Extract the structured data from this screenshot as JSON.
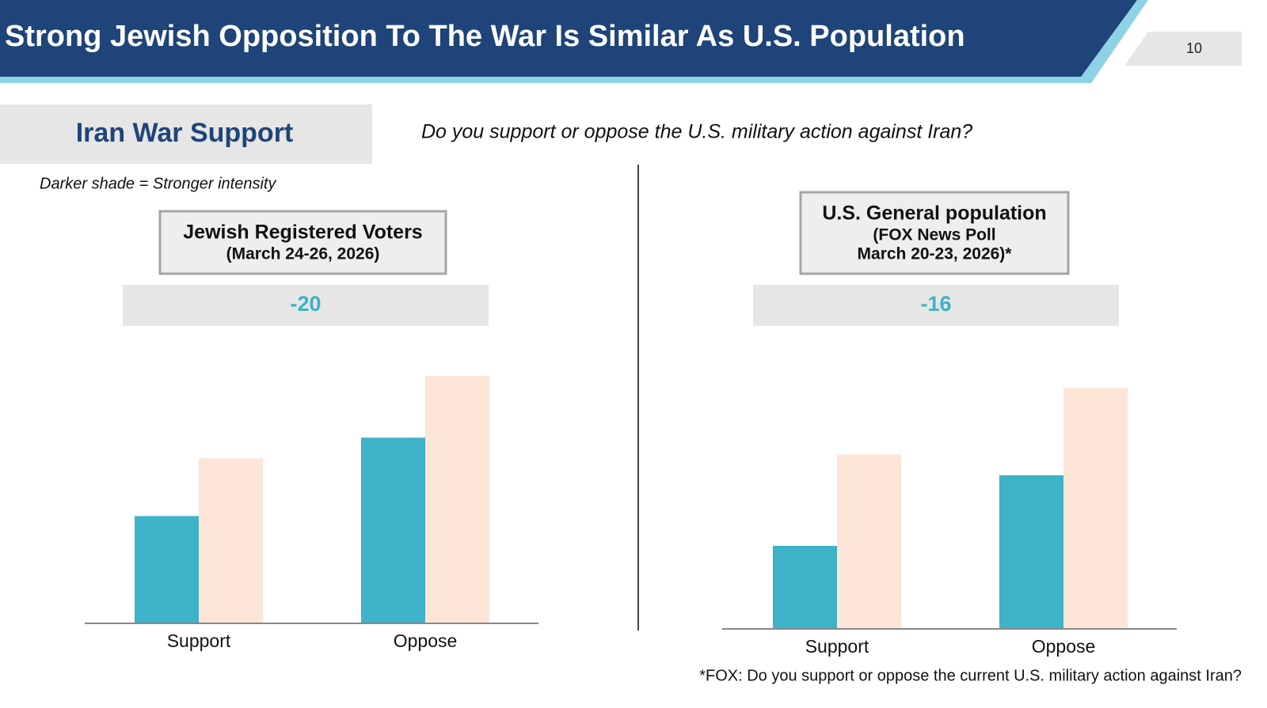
{
  "header": {
    "title": "Strong Jewish Opposition To The War Is Similar As U.S. Population",
    "page_number": 10
  },
  "section_label": "Iran War Support",
  "question": "Do you support or oppose the U.S. military action against Iran?",
  "note": "Darker shade = Stronger intensity",
  "footnote": "*FOX: Do you support or oppose the current U.S. military action against Iran?",
  "chart_data": [
    {
      "type": "bar",
      "title": "Jewish Registered Voters",
      "subtitle": [
        "(March 24-26, 2026)"
      ],
      "net": -20,
      "categories": [
        "Support",
        "Oppose"
      ],
      "ylim": [
        0,
        60
      ],
      "series": [
        {
          "color": "#3db2c8",
          "values": [
            26,
            45
          ]
        },
        {
          "color": "#fde6d7",
          "values": [
            40,
            60
          ]
        }
      ]
    },
    {
      "type": "bar",
      "title": "U.S. General population",
      "subtitle": [
        "(FOX News Poll",
        "March 20-23, 2026)*"
      ],
      "net": -16,
      "categories": [
        "Support",
        "Oppose"
      ],
      "ylim": [
        0,
        60
      ],
      "series": [
        {
          "color": "#3db2c8",
          "values": [
            20,
            37
          ]
        },
        {
          "color": "#fde6d7",
          "values": [
            42,
            58
          ]
        }
      ]
    }
  ]
}
